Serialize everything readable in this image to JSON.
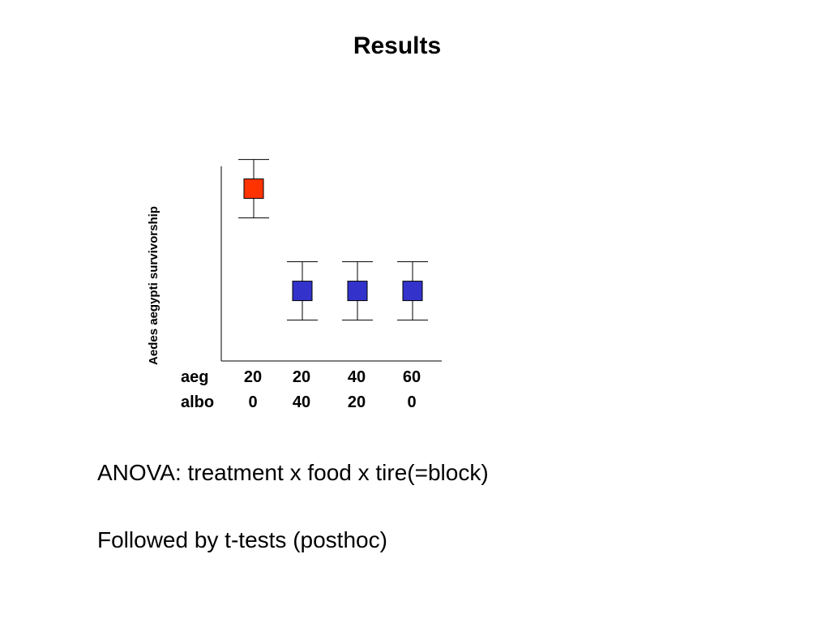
{
  "slide": {
    "title": "Results",
    "body_lines": [
      "ANOVA: treatment x food x tire(=block)",
      "Followed by t-tests (posthoc)"
    ]
  },
  "chart_data": {
    "type": "scatter",
    "title": "",
    "ylabel": "Aedes aegypti survivorship",
    "xlabel": "",
    "row_labels": [
      "aeg",
      "albo"
    ],
    "categories": [
      {
        "aeg": "20",
        "albo": "0"
      },
      {
        "aeg": "20",
        "albo": "40"
      },
      {
        "aeg": "40",
        "albo": "20"
      },
      {
        "aeg": "60",
        "albo": "0"
      }
    ],
    "values": [
      0.885,
      0.36,
      0.36,
      0.36
    ],
    "error_low": [
      0.735,
      0.21,
      0.21,
      0.21
    ],
    "error_high": [
      1.035,
      0.51,
      0.51,
      0.51
    ],
    "ylim": [
      0,
      1.0
    ],
    "point_colors": [
      "#ff3300",
      "#3333cc",
      "#3333cc",
      "#3333cc"
    ],
    "grid": false
  }
}
